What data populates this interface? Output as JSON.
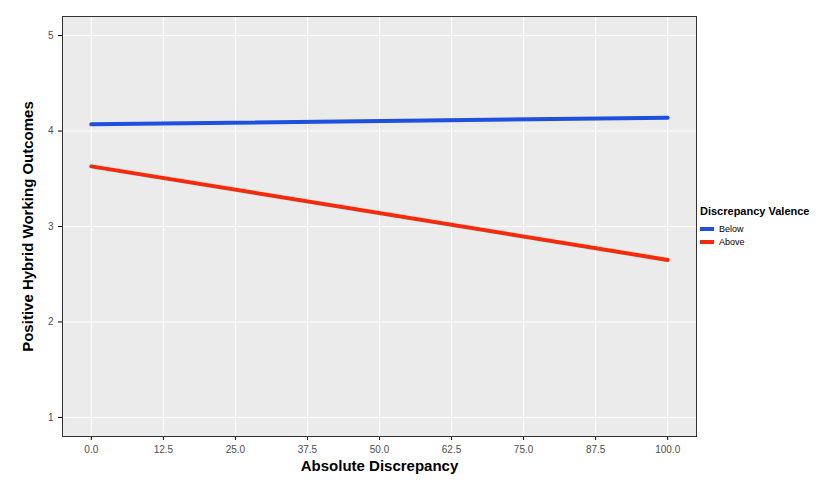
{
  "chart_data": {
    "type": "line",
    "xlabel": "Absolute Discrepancy",
    "ylabel": "Positive Hybrid Working Outcomes",
    "legend_title": "Discrepancy Valence",
    "x": [
      0,
      100
    ],
    "series": [
      {
        "name": "Below",
        "color": "#1f4fe0",
        "values": [
          4.07,
          4.14
        ]
      },
      {
        "name": "Above",
        "color": "#f52a0a",
        "values": [
          3.63,
          2.65
        ]
      }
    ],
    "xlim": [
      -5,
      105
    ],
    "ylim": [
      0.8,
      5.2
    ],
    "xticks": [
      {
        "value": 0,
        "label": "0.0"
      },
      {
        "value": 12.5,
        "label": "12.5"
      },
      {
        "value": 25,
        "label": "25.0"
      },
      {
        "value": 37.5,
        "label": "37.5"
      },
      {
        "value": 50,
        "label": "50.0"
      },
      {
        "value": 62.5,
        "label": "62.5"
      },
      {
        "value": 75,
        "label": "75.0"
      },
      {
        "value": 87.5,
        "label": "87.5"
      },
      {
        "value": 100,
        "label": "100.0"
      }
    ],
    "yticks": [
      1,
      2,
      3,
      4,
      5
    ],
    "grid": true,
    "legend": "right"
  }
}
